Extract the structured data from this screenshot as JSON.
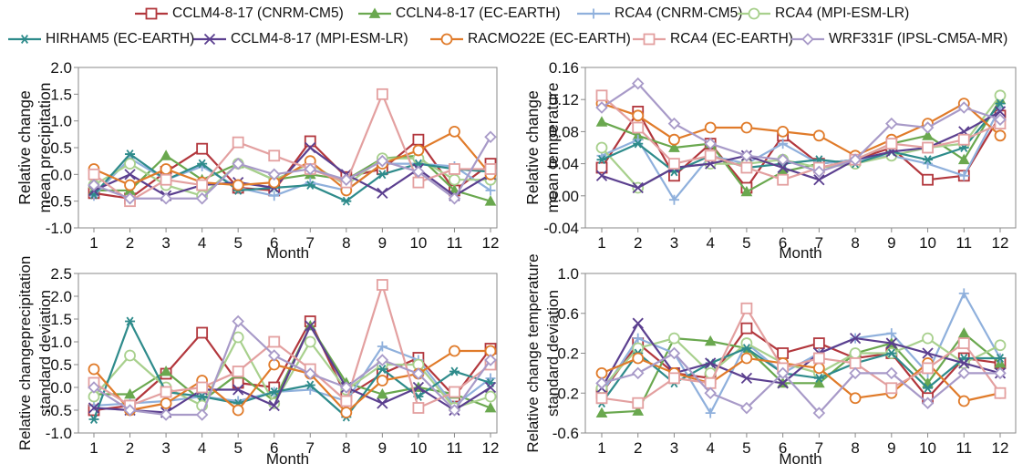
{
  "legend": [
    {
      "name": "CCLM4-8-17 (CNRM-CM5)",
      "color": "#b2373d",
      "marker": "square"
    },
    {
      "name": "CCLN4-8-17 (EC-EARTH)",
      "color": "#6aa84f",
      "marker": "triangle"
    },
    {
      "name": "RCA4 (CNRM-CM5)",
      "color": "#8fb0dc",
      "marker": "plus"
    },
    {
      "name": "RCA4 (MPI-ESM-LR)",
      "color": "#a8d08d",
      "marker": "circle"
    },
    {
      "name": "HIRHAM5 (EC-EARTH)",
      "color": "#2e8b8b",
      "marker": "star"
    },
    {
      "name": "CCLM4-8-17 (MPI-ESM-LR)",
      "color": "#5b3f8f",
      "marker": "x"
    },
    {
      "name": "RACMO22E (EC-EARTH)",
      "color": "#e07b2a",
      "marker": "circle"
    },
    {
      "name": "RCA4 (EC-EARTH)",
      "color": "#e3a0a0",
      "marker": "square"
    },
    {
      "name": "WRF331F (IPSL-CM5A-MR)",
      "color": "#a89ac8",
      "marker": "diamond"
    }
  ],
  "chart_data": [
    {
      "type": "line",
      "xlabel": "Month",
      "ylabel": [
        "Relative change",
        "mean precipitation"
      ],
      "ylim": [
        -1.0,
        2.0
      ],
      "yticks": [
        "-1.0",
        "-0.5",
        "0.0",
        "0.5",
        "1.0",
        "1.5",
        "2.0"
      ],
      "x": [
        "1",
        "2",
        "3",
        "4",
        "5",
        "6",
        "7",
        "8",
        "9",
        "10",
        "11",
        "12"
      ],
      "series": [
        {
          "name": "CCLM4-8-17 (CNRM-CM5)",
          "values": [
            -0.35,
            -0.45,
            0.05,
            0.48,
            -0.25,
            -0.3,
            0.62,
            -0.05,
            0.1,
            0.65,
            -0.3,
            0.2
          ]
        },
        {
          "name": "CCLN4-8-17 (EC-EARTH)",
          "values": [
            -0.3,
            -0.3,
            0.35,
            -0.1,
            0.2,
            -0.1,
            0.0,
            -0.1,
            0.3,
            0.35,
            -0.3,
            -0.5
          ]
        },
        {
          "name": "RCA4 (CNRM-CM5)",
          "values": [
            -0.4,
            0.3,
            -0.1,
            0.15,
            -0.25,
            -0.4,
            -0.15,
            -0.3,
            0.2,
            0.2,
            0.15,
            -0.3
          ]
        },
        {
          "name": "RCA4 (MPI-ESM-LR)",
          "values": [
            -0.2,
            0.2,
            -0.2,
            -0.4,
            0.2,
            -0.1,
            0.2,
            -0.2,
            0.3,
            0.3,
            -0.1,
            -0.1
          ]
        },
        {
          "name": "HIRHAM5 (EC-EARTH)",
          "values": [
            -0.38,
            0.38,
            -0.1,
            0.2,
            -0.3,
            -0.25,
            -0.2,
            -0.5,
            0.0,
            0.2,
            0.1,
            0.05
          ]
        },
        {
          "name": "CCLM4-8-17 (MPI-ESM-LR)",
          "values": [
            -0.3,
            0.0,
            -0.4,
            -0.2,
            -0.15,
            -0.25,
            0.5,
            0.0,
            -0.35,
            0.1,
            -0.4,
            0.0
          ]
        },
        {
          "name": "RACMO22E (EC-EARTH)",
          "values": [
            0.1,
            -0.2,
            0.1,
            -0.15,
            -0.2,
            -0.15,
            0.25,
            -0.3,
            0.2,
            0.45,
            0.8,
            0.0
          ]
        },
        {
          "name": "RCA4 (EC-EARTH)",
          "values": [
            0.0,
            -0.5,
            -0.1,
            -0.2,
            0.6,
            0.35,
            0.1,
            -0.15,
            1.5,
            -0.15,
            0.1,
            0.1
          ]
        },
        {
          "name": "WRF331F (IPSL-CM5A-MR)",
          "values": [
            -0.2,
            -0.45,
            -0.45,
            -0.45,
            0.2,
            0.0,
            0.1,
            -0.1,
            0.25,
            0.05,
            -0.45,
            0.7
          ]
        }
      ]
    },
    {
      "type": "line",
      "xlabel": "Month",
      "ylabel": [
        "Relative change",
        "mean temperature"
      ],
      "ylim": [
        -0.04,
        0.16
      ],
      "yticks": [
        "-0.04",
        "0.00",
        "0.04",
        "0.08",
        "0.12",
        "0.16"
      ],
      "x": [
        "1",
        "2",
        "3",
        "4",
        "5",
        "6",
        "7",
        "8",
        "9",
        "10",
        "11",
        "12"
      ],
      "series": [
        {
          "name": "CCLM4-8-17 (CNRM-CM5)",
          "values": [
            0.035,
            0.105,
            0.025,
            0.065,
            0.01,
            0.075,
            0.04,
            0.045,
            0.06,
            0.02,
            0.025,
            0.1
          ]
        },
        {
          "name": "CCLN4-8-17 (EC-EARTH)",
          "values": [
            0.092,
            0.075,
            0.06,
            0.065,
            0.005,
            0.03,
            0.04,
            0.045,
            0.065,
            0.075,
            0.045,
            0.12
          ]
        },
        {
          "name": "RCA4 (CNRM-CM5)",
          "values": [
            0.05,
            0.07,
            -0.005,
            0.05,
            0.04,
            0.065,
            0.04,
            0.045,
            0.05,
            0.04,
            0.025,
            0.11
          ]
        },
        {
          "name": "RCA4 (MPI-ESM-LR)",
          "values": [
            0.06,
            0.01,
            0.035,
            0.04,
            0.04,
            0.045,
            0.035,
            0.04,
            0.05,
            0.06,
            0.065,
            0.125
          ]
        },
        {
          "name": "HIRHAM5 (EC-EARTH)",
          "values": [
            0.045,
            0.065,
            0.03,
            0.05,
            0.035,
            0.04,
            0.045,
            0.04,
            0.055,
            0.045,
            0.06,
            0.115
          ]
        },
        {
          "name": "CCLM4-8-17 (MPI-ESM-LR)",
          "values": [
            0.025,
            0.01,
            0.035,
            0.04,
            0.05,
            0.035,
            0.02,
            0.045,
            0.055,
            0.06,
            0.08,
            0.105
          ]
        },
        {
          "name": "RACMO22E (EC-EARTH)",
          "values": [
            0.115,
            0.1,
            0.07,
            0.085,
            0.085,
            0.08,
            0.075,
            0.05,
            0.07,
            0.09,
            0.115,
            0.075
          ]
        },
        {
          "name": "RCA4 (EC-EARTH)",
          "values": [
            0.125,
            0.085,
            0.04,
            0.05,
            0.035,
            0.02,
            0.035,
            0.045,
            0.065,
            0.06,
            0.07,
            0.09
          ]
        },
        {
          "name": "WRF331F (IPSL-CM5A-MR)",
          "values": [
            0.11,
            0.14,
            0.09,
            0.065,
            0.05,
            0.045,
            0.03,
            0.045,
            0.09,
            0.085,
            0.11,
            0.095
          ]
        }
      ]
    },
    {
      "type": "line",
      "xlabel": "Month",
      "ylabel": [
        "Relative changeprecipitation",
        "standard deviation"
      ],
      "ylim": [
        -1.0,
        2.5
      ],
      "yticks": [
        "-1.0",
        "-0.5",
        "0.0",
        "0.5",
        "1.0",
        "1.5",
        "2.0",
        "2.5"
      ],
      "x": [
        "1",
        "2",
        "3",
        "4",
        "5",
        "6",
        "7",
        "8",
        "9",
        "10",
        "11",
        "12"
      ],
      "series": [
        {
          "name": "CCLM4-8-17 (CNRM-CM5)",
          "values": [
            -0.5,
            -0.4,
            0.3,
            1.2,
            0.1,
            0.0,
            1.45,
            -0.2,
            0.3,
            0.65,
            -0.2,
            0.85
          ]
        },
        {
          "name": "CCLN4-8-17 (EC-EARTH)",
          "values": [
            -0.15,
            -0.15,
            0.35,
            -0.3,
            0.3,
            -0.3,
            1.35,
            0.1,
            -0.15,
            0.0,
            -0.15,
            -0.45
          ]
        },
        {
          "name": "RCA4 (CNRM-CM5)",
          "values": [
            -0.4,
            -0.35,
            -0.3,
            -0.2,
            -0.3,
            -0.1,
            -0.05,
            -0.3,
            0.9,
            0.6,
            -0.4,
            0.2
          ]
        },
        {
          "name": "RCA4 (MPI-ESM-LR)",
          "values": [
            -0.2,
            0.7,
            0.0,
            -0.4,
            1.1,
            -0.35,
            1.0,
            -0.05,
            0.5,
            0.5,
            -0.45,
            -0.2
          ]
        },
        {
          "name": "HIRHAM5 (EC-EARTH)",
          "values": [
            -0.7,
            1.45,
            -0.1,
            -0.2,
            -0.35,
            -0.1,
            0.05,
            -0.65,
            0.4,
            -0.2,
            0.35,
            0.1
          ]
        },
        {
          "name": "CCLM4-8-17 (MPI-ESM-LR)",
          "values": [
            -0.45,
            -0.5,
            -0.55,
            -0.05,
            -0.05,
            -0.4,
            1.35,
            0.0,
            -0.35,
            0.0,
            -0.5,
            0.0
          ]
        },
        {
          "name": "RACMO22E (EC-EARTH)",
          "values": [
            0.4,
            -0.5,
            -0.35,
            0.15,
            -0.5,
            0.5,
            0.3,
            -0.55,
            0.15,
            0.3,
            0.8,
            0.8
          ]
        },
        {
          "name": "RCA4 (EC-EARTH)",
          "values": [
            0.1,
            -0.4,
            -0.1,
            0.0,
            0.35,
            1.0,
            0.4,
            -0.3,
            2.25,
            -0.45,
            -0.1,
            0.5
          ]
        },
        {
          "name": "WRF331F (IPSL-CM5A-MR)",
          "values": [
            0.0,
            -0.5,
            -0.6,
            -0.6,
            1.45,
            0.7,
            0.3,
            0.0,
            0.6,
            0.3,
            -0.5,
            0.6
          ]
        }
      ]
    },
    {
      "type": "line",
      "xlabel": "Month",
      "ylabel": [
        "Relative change temperature",
        "standard deviation"
      ],
      "ylim": [
        -0.6,
        1.0
      ],
      "yticks": [
        "-0.6",
        "-0.2",
        "0.2",
        "0.6",
        "1.0"
      ],
      "x": [
        "1",
        "2",
        "3",
        "4",
        "5",
        "6",
        "7",
        "8",
        "9",
        "10",
        "11",
        "12"
      ],
      "series": [
        {
          "name": "CCLM4-8-17 (CNRM-CM5)",
          "values": [
            -0.2,
            0.3,
            0.0,
            -0.05,
            0.45,
            0.2,
            0.3,
            0.15,
            0.2,
            -0.25,
            0.15,
            0.1
          ]
        },
        {
          "name": "CCLN4-8-17 (EC-EARTH)",
          "values": [
            -0.4,
            -0.38,
            0.35,
            0.32,
            0.25,
            -0.1,
            -0.1,
            0.2,
            0.3,
            -0.1,
            0.4,
            0.1
          ]
        },
        {
          "name": "RCA4 (CNRM-CM5)",
          "values": [
            -0.2,
            0.35,
            0.2,
            -0.4,
            0.3,
            0.0,
            0.2,
            0.35,
            0.4,
            0.0,
            0.8,
            0.15
          ]
        },
        {
          "name": "RCA4 (MPI-ESM-LR)",
          "values": [
            -0.15,
            0.25,
            0.35,
            0.0,
            0.3,
            0.1,
            0.0,
            0.2,
            0.2,
            0.35,
            0.1,
            0.28
          ]
        },
        {
          "name": "HIRHAM5 (EC-EARTH)",
          "values": [
            -0.3,
            0.2,
            -0.1,
            0.1,
            0.25,
            0.0,
            -0.05,
            0.1,
            0.2,
            -0.15,
            0.15,
            0.15
          ]
        },
        {
          "name": "CCLM4-8-17 (MPI-ESM-LR)",
          "values": [
            -0.15,
            0.5,
            0.0,
            0.1,
            -0.05,
            -0.1,
            0.2,
            0.35,
            0.3,
            0.2,
            0.1,
            0.0
          ]
        },
        {
          "name": "RACMO22E (EC-EARTH)",
          "values": [
            0.0,
            0.15,
            0.0,
            -0.1,
            0.15,
            0.1,
            0.05,
            -0.25,
            -0.2,
            0.1,
            -0.28,
            -0.2
          ]
        },
        {
          "name": "RCA4 (EC-EARTH)",
          "values": [
            -0.25,
            -0.3,
            -0.05,
            -0.1,
            0.65,
            0.05,
            0.15,
            0.1,
            -0.15,
            0.05,
            0.3,
            -0.2
          ]
        },
        {
          "name": "WRF331F (IPSL-CM5A-MR)",
          "values": [
            -0.1,
            0.0,
            0.2,
            -0.2,
            -0.35,
            0.0,
            -0.4,
            0.0,
            0.0,
            -0.3,
            0.0,
            0.0
          ]
        }
      ]
    }
  ]
}
